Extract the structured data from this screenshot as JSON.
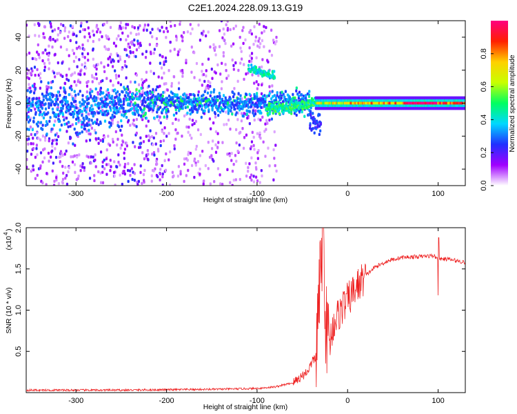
{
  "title": "C2E1.2024.228.09.13.G19",
  "chart_data": [
    {
      "type": "heatmap",
      "xlabel": "Height of straight line (km)",
      "ylabel": "Frequency (Hz)",
      "xlim": [
        -355,
        130
      ],
      "ylim": [
        -50,
        50
      ],
      "xticks": [
        -300,
        -200,
        -100,
        0,
        100
      ],
      "yticks": [
        -40,
        -20,
        0,
        20,
        40
      ],
      "colorbar": {
        "label": "Normalized spectral amplitude",
        "range": [
          0,
          1
        ],
        "ticks": [
          "0.0",
          "0.2",
          "0.4",
          "0.6",
          "0.8"
        ],
        "tick_values": [
          0,
          0.2,
          0.4,
          0.6,
          0.8
        ],
        "colors": [
          "#ffffff",
          "#a000ff",
          "#2030ff",
          "#00d8ff",
          "#00ff60",
          "#c8ff00",
          "#ffd000",
          "#ff2000",
          "#ff0080"
        ]
      },
      "features": [
        {
          "x_range": [
            -355,
            -200
          ],
          "freq_range": [
            -50,
            50
          ],
          "level": "noise 0.1-0.3, core band near 0 Hz about 0.3"
        },
        {
          "x_range": [
            -200,
            -110
          ],
          "freq_range": [
            -8,
            8
          ],
          "level": "band near 0 Hz about 0.3-0.5"
        },
        {
          "x_range": [
            -110,
            -85
          ],
          "freq_range": [
            18,
            24
          ],
          "level": "side branch about 0.4-0.5"
        },
        {
          "x_range": [
            -85,
            -40
          ],
          "freq_range": [
            -10,
            5
          ],
          "level": "descending branch about 0.4-0.6"
        },
        {
          "x_range": [
            -40,
            -30
          ],
          "freq_range": [
            -18,
            -8
          ],
          "level": "tail about 0.2-0.3"
        },
        {
          "x_range": [
            -35,
            130
          ],
          "freq_range": [
            -2,
            2
          ],
          "level": "carrier line about 0.6-1.0"
        }
      ]
    },
    {
      "type": "line",
      "xlabel": "Height of straight line (km)",
      "ylabel": "SNR (10 * v/v)",
      "multiplier": "(x10",
      "multiplier_exp": "4",
      "xlim": [
        -355,
        130
      ],
      "ylim": [
        0,
        2.0
      ],
      "xticks": [
        -300,
        -200,
        -100,
        0,
        100
      ],
      "yticks": [
        "0.5",
        "1.0",
        "1.5",
        "2.0"
      ],
      "ytick_values": [
        0.5,
        1.0,
        1.5,
        2.0
      ],
      "color": "#ee2020",
      "profile": [
        [
          -355,
          0.03
        ],
        [
          -250,
          0.03
        ],
        [
          -150,
          0.04
        ],
        [
          -100,
          0.05
        ],
        [
          -80,
          0.07
        ],
        [
          -60,
          0.12
        ],
        [
          -45,
          0.25
        ],
        [
          -35,
          0.45
        ],
        [
          -30,
          1.4
        ],
        [
          -27,
          2.0
        ],
        [
          -24,
          0.8
        ],
        [
          -20,
          0.6
        ],
        [
          -15,
          0.85
        ],
        [
          -10,
          0.95
        ],
        [
          -5,
          1.05
        ],
        [
          0,
          1.12
        ],
        [
          10,
          1.28
        ],
        [
          20,
          1.42
        ],
        [
          30,
          1.52
        ],
        [
          45,
          1.6
        ],
        [
          60,
          1.64
        ],
        [
          80,
          1.65
        ],
        [
          95,
          1.66
        ],
        [
          100,
          1.62
        ],
        [
          110,
          1.62
        ],
        [
          130,
          1.58
        ]
      ],
      "features": [
        {
          "x": 100,
          "y": 1.2,
          "note": "dropout"
        },
        {
          "x": 100,
          "y": 1.88,
          "note": "spike"
        }
      ]
    }
  ]
}
